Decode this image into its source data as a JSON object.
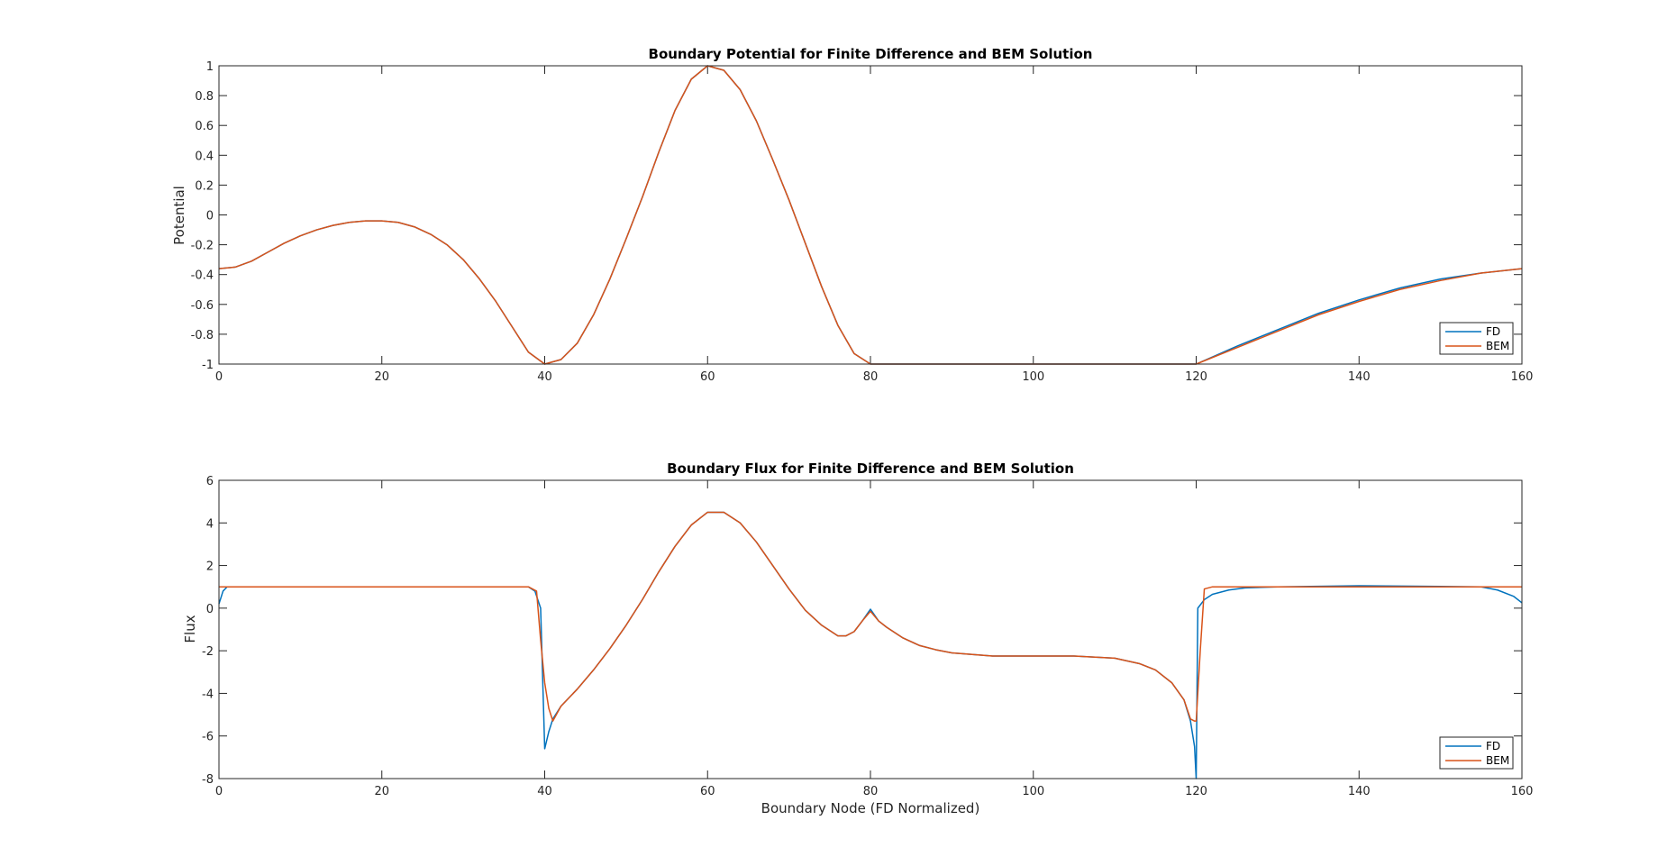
{
  "chart_data": [
    {
      "type": "line",
      "title": "Boundary Potential for Finite Difference and BEM Solution",
      "xlabel": "",
      "ylabel": "Potential",
      "xlim": [
        0,
        160
      ],
      "ylim": [
        -1,
        1
      ],
      "xticks": [
        "0",
        "20",
        "40",
        "60",
        "80",
        "100",
        "120",
        "140",
        "160"
      ],
      "yticks": [
        "-1",
        "-0.8",
        "-0.6",
        "-0.4",
        "-0.2",
        "0",
        "0.2",
        "0.4",
        "0.6",
        "0.8",
        "1"
      ],
      "grid": false,
      "legend_position": "bottom-right",
      "series": [
        {
          "name": "FD",
          "color": "#0072BD",
          "x": [
            0,
            2,
            4,
            6,
            8,
            10,
            12,
            14,
            16,
            18,
            20,
            22,
            24,
            26,
            28,
            30,
            32,
            34,
            36,
            38,
            40,
            42,
            44,
            46,
            48,
            50,
            52,
            54,
            56,
            58,
            60,
            62,
            64,
            66,
            68,
            70,
            72,
            74,
            76,
            78,
            80,
            90,
            100,
            110,
            120,
            125,
            130,
            135,
            140,
            145,
            150,
            155,
            160
          ],
          "y": [
            -0.36,
            -0.35,
            -0.31,
            -0.25,
            -0.19,
            -0.14,
            -0.1,
            -0.07,
            -0.05,
            -0.04,
            -0.04,
            -0.05,
            -0.08,
            -0.13,
            -0.2,
            -0.3,
            -0.43,
            -0.58,
            -0.75,
            -0.92,
            -1.0,
            -0.97,
            -0.86,
            -0.67,
            -0.43,
            -0.16,
            0.12,
            0.42,
            0.7,
            0.91,
            1.0,
            0.97,
            0.84,
            0.63,
            0.37,
            0.1,
            -0.19,
            -0.48,
            -0.74,
            -0.93,
            -1.0,
            -1.0,
            -1.0,
            -1.0,
            -1.0,
            -0.88,
            -0.77,
            -0.66,
            -0.57,
            -0.49,
            -0.43,
            -0.39,
            -0.36
          ]
        },
        {
          "name": "BEM",
          "color": "#D95319",
          "x": [
            0,
            2,
            4,
            6,
            8,
            10,
            12,
            14,
            16,
            18,
            20,
            22,
            24,
            26,
            28,
            30,
            32,
            34,
            36,
            38,
            40,
            42,
            44,
            46,
            48,
            50,
            52,
            54,
            56,
            58,
            60,
            62,
            64,
            66,
            68,
            70,
            72,
            74,
            76,
            78,
            80,
            90,
            100,
            110,
            120,
            125,
            130,
            135,
            140,
            145,
            150,
            155,
            160
          ],
          "y": [
            -0.36,
            -0.35,
            -0.31,
            -0.25,
            -0.19,
            -0.14,
            -0.1,
            -0.07,
            -0.05,
            -0.04,
            -0.04,
            -0.05,
            -0.08,
            -0.13,
            -0.2,
            -0.3,
            -0.43,
            -0.58,
            -0.75,
            -0.92,
            -1.0,
            -0.97,
            -0.86,
            -0.67,
            -0.43,
            -0.16,
            0.12,
            0.42,
            0.7,
            0.91,
            1.0,
            0.97,
            0.84,
            0.63,
            0.37,
            0.1,
            -0.19,
            -0.48,
            -0.74,
            -0.93,
            -1.0,
            -1.0,
            -1.0,
            -1.0,
            -1.0,
            -0.89,
            -0.78,
            -0.67,
            -0.58,
            -0.5,
            -0.44,
            -0.39,
            -0.36
          ]
        }
      ]
    },
    {
      "type": "line",
      "title": "Boundary Flux for Finite Difference and BEM Solution",
      "xlabel": "Boundary Node (FD Normalized)",
      "ylabel": "Flux",
      "xlim": [
        0,
        160
      ],
      "ylim": [
        -8,
        6
      ],
      "xticks": [
        "0",
        "20",
        "40",
        "60",
        "80",
        "100",
        "120",
        "140",
        "160"
      ],
      "yticks": [
        "-8",
        "-6",
        "-4",
        "-2",
        "0",
        "2",
        "4",
        "6"
      ],
      "grid": false,
      "legend_position": "bottom-right",
      "series": [
        {
          "name": "FD",
          "color": "#0072BD",
          "x": [
            0,
            0.5,
            1,
            5,
            10,
            20,
            30,
            38,
            38.8,
            39.5,
            40,
            40.5,
            41,
            42,
            44,
            46,
            48,
            50,
            52,
            54,
            56,
            58,
            60,
            62,
            64,
            66,
            68,
            70,
            72,
            74,
            76,
            77,
            78,
            79,
            80,
            81,
            82,
            84,
            86,
            88,
            90,
            95,
            100,
            105,
            110,
            113,
            115,
            117,
            118.5,
            119.3,
            119.8,
            120,
            120.2,
            121,
            122,
            124,
            126,
            130,
            140,
            150,
            155,
            157,
            159,
            160
          ],
          "y": [
            0.2,
            0.8,
            1.0,
            1.0,
            1.0,
            1.0,
            1.0,
            1.0,
            0.8,
            0.0,
            -6.6,
            -5.8,
            -5.2,
            -4.6,
            -3.8,
            -2.9,
            -1.9,
            -0.8,
            0.4,
            1.7,
            2.9,
            3.9,
            4.5,
            4.5,
            4.0,
            3.1,
            2.0,
            0.9,
            -0.1,
            -0.8,
            -1.3,
            -1.3,
            -1.1,
            -0.6,
            -0.05,
            -0.6,
            -0.9,
            -1.4,
            -1.75,
            -1.95,
            -2.1,
            -2.25,
            -2.25,
            -2.25,
            -2.35,
            -2.6,
            -2.9,
            -3.5,
            -4.3,
            -5.3,
            -6.5,
            -8.0,
            0.0,
            0.4,
            0.65,
            0.85,
            0.95,
            1.0,
            1.05,
            1.02,
            1.0,
            0.85,
            0.55,
            0.25
          ]
        },
        {
          "name": "BEM",
          "color": "#D95319",
          "x": [
            0,
            1,
            5,
            10,
            20,
            30,
            38,
            39,
            39.5,
            40,
            40.5,
            41,
            42,
            44,
            46,
            48,
            50,
            52,
            54,
            56,
            58,
            60,
            62,
            64,
            66,
            68,
            70,
            72,
            74,
            76,
            77,
            78,
            79,
            80,
            81,
            82,
            84,
            86,
            88,
            90,
            95,
            100,
            105,
            110,
            113,
            115,
            117,
            118.5,
            119.3,
            119.8,
            120,
            120.5,
            121,
            122,
            124,
            126,
            130,
            140,
            150,
            155,
            160
          ],
          "y": [
            1.0,
            1.0,
            1.0,
            1.0,
            1.0,
            1.0,
            1.0,
            0.8,
            -1.5,
            -3.5,
            -4.7,
            -5.3,
            -4.6,
            -3.8,
            -2.9,
            -1.9,
            -0.8,
            0.4,
            1.7,
            2.9,
            3.9,
            4.5,
            4.5,
            4.0,
            3.1,
            2.0,
            0.9,
            -0.1,
            -0.8,
            -1.3,
            -1.3,
            -1.1,
            -0.6,
            -0.15,
            -0.6,
            -0.9,
            -1.4,
            -1.75,
            -1.95,
            -2.1,
            -2.25,
            -2.25,
            -2.25,
            -2.35,
            -2.6,
            -2.9,
            -3.5,
            -4.3,
            -5.2,
            -5.3,
            -5.3,
            -2.0,
            0.9,
            1.0,
            1.0,
            1.0,
            1.0,
            1.0,
            1.0,
            1.0,
            1.0
          ]
        }
      ]
    }
  ]
}
